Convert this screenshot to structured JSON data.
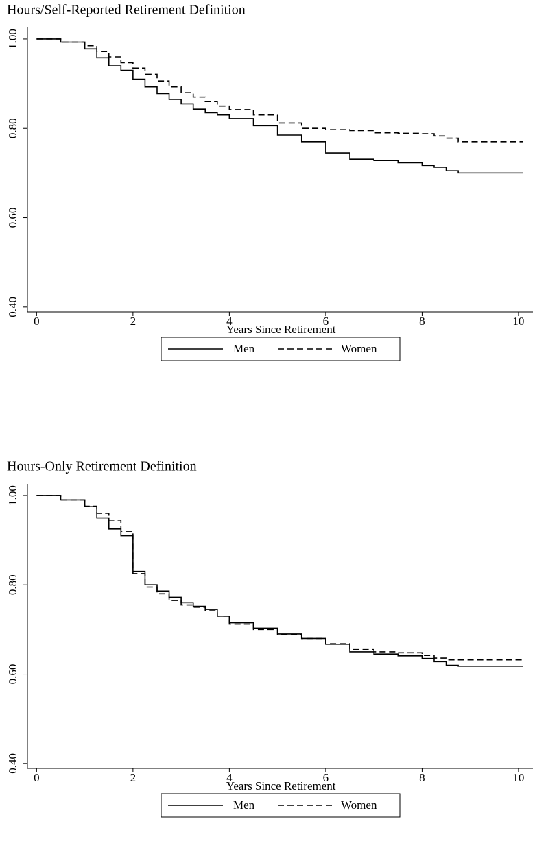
{
  "chart_data": [
    {
      "type": "line",
      "line_style": "step",
      "title": "Hours/Self-Reported Retirement Definition",
      "x_label": "Years Since Retirement",
      "x": [
        0,
        0.5,
        1,
        1.25,
        1.5,
        1.75,
        2,
        2.25,
        2.5,
        2.75,
        3,
        3.25,
        3.5,
        3.75,
        4,
        4.5,
        5,
        5.5,
        6,
        6.5,
        7,
        7.5,
        8,
        8.25,
        8.5,
        8.75,
        10.1
      ],
      "series": [
        {
          "name": "Men",
          "color": "#000000",
          "dash": "solid",
          "values": [
            1.0,
            0.993,
            0.978,
            0.958,
            0.94,
            0.93,
            0.91,
            0.893,
            0.878,
            0.865,
            0.855,
            0.843,
            0.835,
            0.83,
            0.822,
            0.806,
            0.785,
            0.77,
            0.745,
            0.731,
            0.728,
            0.723,
            0.717,
            0.713,
            0.705,
            0.7,
            0.7
          ]
        },
        {
          "name": "Women",
          "color": "#000000",
          "dash": "dashed",
          "values": [
            1.0,
            0.993,
            0.985,
            0.972,
            0.96,
            0.947,
            0.935,
            0.921,
            0.906,
            0.893,
            0.88,
            0.87,
            0.86,
            0.85,
            0.842,
            0.83,
            0.812,
            0.8,
            0.797,
            0.795,
            0.79,
            0.789,
            0.788,
            0.783,
            0.778,
            0.77,
            0.77
          ]
        }
      ],
      "xlim": [
        -0.19,
        10.3
      ],
      "xticks": [
        0,
        2,
        4,
        6,
        8,
        10
      ],
      "ylim": [
        0.389,
        1.026
      ],
      "yticks": [
        {
          "value": 0.4,
          "label": "0.40"
        },
        {
          "value": 0.6,
          "label": "0.60"
        },
        {
          "value": 0.8,
          "label": "0.80"
        },
        {
          "value": 1,
          "label": "1.00"
        }
      ],
      "legend": "bottom"
    },
    {
      "type": "line",
      "line_style": "step",
      "title": "Hours-Only Retirement Definition",
      "x_label": "Years Since Retirement",
      "x": [
        0,
        0.5,
        1,
        1.25,
        1.5,
        1.75,
        2,
        2.25,
        2.5,
        2.75,
        3,
        3.25,
        3.5,
        3.75,
        4,
        4.5,
        5,
        5.5,
        6,
        6.5,
        7,
        7.5,
        8,
        8.25,
        8.5,
        8.75,
        10.1
      ],
      "series": [
        {
          "name": "Men",
          "color": "#000000",
          "dash": "solid",
          "values": [
            1.0,
            0.99,
            0.975,
            0.95,
            0.925,
            0.91,
            0.83,
            0.8,
            0.786,
            0.772,
            0.76,
            0.752,
            0.745,
            0.73,
            0.715,
            0.703,
            0.69,
            0.68,
            0.667,
            0.65,
            0.645,
            0.641,
            0.635,
            0.628,
            0.62,
            0.618,
            0.618
          ]
        },
        {
          "name": "Women",
          "color": "#000000",
          "dash": "dashed",
          "values": [
            1.0,
            0.99,
            0.976,
            0.96,
            0.945,
            0.92,
            0.825,
            0.795,
            0.78,
            0.765,
            0.755,
            0.75,
            0.742,
            0.73,
            0.712,
            0.7,
            0.688,
            0.68,
            0.668,
            0.655,
            0.65,
            0.648,
            0.642,
            0.636,
            0.632,
            0.632,
            0.632
          ]
        }
      ],
      "xlim": [
        -0.19,
        10.3
      ],
      "xticks": [
        0,
        2,
        4,
        6,
        8,
        10
      ],
      "ylim": [
        0.389,
        1.026
      ],
      "yticks": [
        {
          "value": 0.4,
          "label": "0.40"
        },
        {
          "value": 0.6,
          "label": "0.60"
        },
        {
          "value": 0.8,
          "label": "0.80"
        },
        {
          "value": 1,
          "label": "1.00"
        }
      ],
      "legend": "bottom"
    }
  ]
}
